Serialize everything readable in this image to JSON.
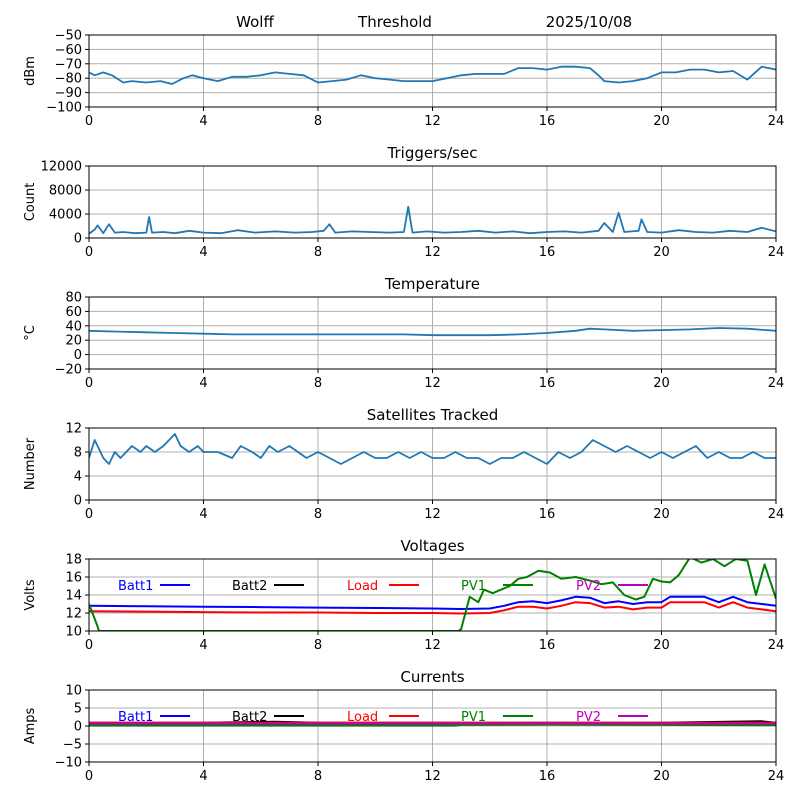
{
  "header": {
    "station": "Wolff",
    "mode": "Threshold",
    "date": "2025/10/08"
  },
  "colors": {
    "series": "#1f77b4",
    "batt1": "#0000ff",
    "batt2": "#000000",
    "load": "#ff0000",
    "pv1": "#008000",
    "pv2": "#bf00bf",
    "grid": "#b0b0b0"
  },
  "chart_data": [
    {
      "type": "line",
      "title": "",
      "ylabel": "dBm",
      "xlim": [
        0,
        24
      ],
      "ylim": [
        -100,
        -50
      ],
      "x_ticks": [
        "0",
        "4",
        "8",
        "12",
        "16",
        "20",
        "24"
      ],
      "y_ticks": [
        "−50",
        "−60",
        "−70",
        "−80",
        "−90",
        "−100"
      ],
      "y_tick_values": [
        -50,
        -60,
        -70,
        -80,
        -90,
        -100
      ],
      "grid": true,
      "series": [
        {
          "x": [
            0,
            0.2,
            0.5,
            0.8,
            1.2,
            1.5,
            2,
            2.5,
            2.9,
            3.3,
            3.6,
            4,
            4.5,
            5,
            5.5,
            6,
            6.5,
            7,
            7.5,
            8,
            8.5,
            9,
            9.5,
            10,
            10.5,
            11,
            11.5,
            12,
            12.5,
            13,
            13.5,
            14,
            14.5,
            15,
            15.5,
            16,
            16.5,
            17,
            17.5,
            17.8,
            18,
            18.5,
            19,
            19.5,
            20,
            20.5,
            21,
            21.5,
            22,
            22.5,
            23,
            23.5,
            24
          ],
          "y": [
            -76,
            -78,
            -76,
            -78,
            -83,
            -82,
            -83,
            -82,
            -84,
            -80,
            -78,
            -80,
            -82,
            -79,
            -79,
            -78,
            -76,
            -77,
            -78,
            -83,
            -82,
            -81,
            -78,
            -80,
            -81,
            -82,
            -82,
            -82,
            -80,
            -78,
            -77,
            -77,
            -77,
            -73,
            -73,
            -74,
            -72,
            -72,
            -73,
            -78,
            -82,
            -83,
            -82,
            -80,
            -76,
            -76,
            -74,
            -74,
            -76,
            -75,
            -81,
            -72,
            -74
          ]
        }
      ]
    },
    {
      "type": "line",
      "title": "Triggers/sec",
      "ylabel": "Count",
      "xlim": [
        0,
        24
      ],
      "ylim": [
        0,
        12000
      ],
      "x_ticks": [
        "0",
        "4",
        "8",
        "12",
        "16",
        "20",
        "24"
      ],
      "y_ticks": [
        "0",
        "4000",
        "8000",
        "12000"
      ],
      "y_tick_values": [
        0,
        4000,
        8000,
        12000
      ],
      "grid": true,
      "series": [
        {
          "x": [
            0,
            0.2,
            0.3,
            0.5,
            0.7,
            0.9,
            1.2,
            1.6,
            2.0,
            2.1,
            2.2,
            2.6,
            3.0,
            3.5,
            4.0,
            4.6,
            5.2,
            5.8,
            6.5,
            7.2,
            7.8,
            8.2,
            8.4,
            8.6,
            9.2,
            9.8,
            10.5,
            11.0,
            11.15,
            11.3,
            11.8,
            12.4,
            13.0,
            13.6,
            14.2,
            14.8,
            15.4,
            16.0,
            16.6,
            17.2,
            17.8,
            18.0,
            18.3,
            18.5,
            18.7,
            19.2,
            19.3,
            19.5,
            20.0,
            20.6,
            21.2,
            21.8,
            22.4,
            23.0,
            23.5,
            24.0
          ],
          "y": [
            700,
            1400,
            2100,
            800,
            2300,
            900,
            1000,
            800,
            900,
            3500,
            900,
            1000,
            800,
            1200,
            900,
            800,
            1300,
            900,
            1100,
            900,
            1000,
            1200,
            2300,
            900,
            1100,
            1000,
            900,
            1000,
            5200,
            900,
            1100,
            900,
            1000,
            1200,
            900,
            1100,
            800,
            1000,
            1100,
            900,
            1200,
            2500,
            1000,
            4200,
            1000,
            1200,
            3100,
            1000,
            900,
            1300,
            1000,
            900,
            1200,
            1000,
            1700,
            1100
          ]
        }
      ]
    },
    {
      "type": "line",
      "title": "Temperature",
      "ylabel": "°C",
      "xlim": [
        0,
        24
      ],
      "ylim": [
        -20,
        80
      ],
      "x_ticks": [
        "0",
        "4",
        "8",
        "12",
        "16",
        "20",
        "24"
      ],
      "y_ticks": [
        "−20",
        "0",
        "20",
        "40",
        "60",
        "80"
      ],
      "y_tick_values": [
        -20,
        0,
        20,
        40,
        60,
        80
      ],
      "grid": true,
      "series": [
        {
          "x": [
            0,
            1,
            2,
            3,
            4,
            5,
            6,
            7,
            8,
            9,
            10,
            11,
            12,
            13,
            14,
            15,
            16,
            17,
            17.5,
            18,
            19,
            20,
            21,
            22,
            23,
            24
          ],
          "y": [
            33,
            32,
            31,
            30,
            29,
            28,
            28,
            28,
            28,
            28,
            28,
            28,
            27,
            27,
            27,
            28,
            30,
            33,
            36,
            35,
            33,
            34,
            35,
            37,
            36,
            33
          ]
        }
      ]
    },
    {
      "type": "line",
      "title": "Satellites Tracked",
      "ylabel": "Number",
      "xlim": [
        0,
        24
      ],
      "ylim": [
        0,
        12
      ],
      "x_ticks": [
        "0",
        "4",
        "8",
        "12",
        "16",
        "20",
        "24"
      ],
      "y_ticks": [
        "0",
        "4",
        "8",
        "12"
      ],
      "y_tick_values": [
        0,
        4,
        8,
        12
      ],
      "grid": true,
      "series": [
        {
          "x": [
            0,
            0.2,
            0.3,
            0.5,
            0.7,
            0.9,
            1.1,
            1.3,
            1.5,
            1.8,
            2.0,
            2.3,
            2.6,
            3.0,
            3.2,
            3.5,
            3.8,
            4.0,
            4.5,
            5.0,
            5.3,
            5.7,
            6.0,
            6.3,
            6.6,
            7.0,
            7.3,
            7.6,
            8.0,
            8.4,
            8.8,
            9.2,
            9.6,
            10.0,
            10.4,
            10.8,
            11.2,
            11.6,
            12.0,
            12.4,
            12.8,
            13.2,
            13.6,
            14.0,
            14.4,
            14.8,
            15.2,
            15.6,
            16.0,
            16.4,
            16.8,
            17.2,
            17.6,
            18.0,
            18.4,
            18.8,
            19.2,
            19.6,
            20.0,
            20.4,
            20.8,
            21.2,
            21.6,
            22.0,
            22.4,
            22.8,
            23.2,
            23.6,
            24.0
          ],
          "y": [
            7,
            10,
            9,
            7,
            6,
            8,
            7,
            8,
            9,
            8,
            9,
            8,
            9,
            11,
            9,
            8,
            9,
            8,
            8,
            7,
            9,
            8,
            7,
            9,
            8,
            9,
            8,
            7,
            8,
            7,
            6,
            7,
            8,
            7,
            7,
            8,
            7,
            8,
            7,
            7,
            8,
            7,
            7,
            6,
            7,
            7,
            8,
            7,
            6,
            8,
            7,
            8,
            10,
            9,
            8,
            9,
            8,
            7,
            8,
            7,
            8,
            9,
            7,
            8,
            7,
            7,
            8,
            7,
            7
          ]
        }
      ]
    },
    {
      "type": "line",
      "title": "Voltages",
      "ylabel": "Volts",
      "xlim": [
        0,
        24
      ],
      "ylim": [
        10,
        18
      ],
      "x_ticks": [
        "0",
        "4",
        "8",
        "12",
        "16",
        "20",
        "24"
      ],
      "y_ticks": [
        "10",
        "12",
        "14",
        "16",
        "18"
      ],
      "y_tick_values": [
        10,
        12,
        14,
        16,
        18
      ],
      "grid": true,
      "legend": "top",
      "series": [
        {
          "name": "Batt1",
          "color": "#0000ff",
          "x": [
            0,
            2,
            4,
            6,
            8,
            10,
            12,
            13,
            14,
            14.5,
            15,
            15.5,
            16,
            16.5,
            17,
            17.5,
            18,
            18.5,
            19,
            19.5,
            20,
            20.3,
            21,
            21.5,
            22,
            22.5,
            23,
            23.5,
            24
          ],
          "y": [
            12.8,
            12.75,
            12.7,
            12.65,
            12.6,
            12.55,
            12.5,
            12.45,
            12.5,
            12.8,
            13.2,
            13.3,
            13.1,
            13.4,
            13.8,
            13.7,
            13.1,
            13.3,
            13.0,
            13.2,
            13.2,
            13.8,
            13.8,
            13.8,
            13.2,
            13.8,
            13.2,
            13.0,
            12.8
          ]
        },
        {
          "name": "Batt2",
          "color": "#000000",
          "x": [],
          "y": []
        },
        {
          "name": "Load",
          "color": "#ff0000",
          "x": [
            0,
            2,
            4,
            6,
            8,
            10,
            12,
            13,
            14,
            14.5,
            15,
            15.5,
            16,
            16.5,
            17,
            17.5,
            18,
            18.5,
            19,
            19.5,
            20,
            20.3,
            21,
            21.5,
            22,
            22.5,
            23,
            23.5,
            24
          ],
          "y": [
            12.2,
            12.15,
            12.1,
            12.05,
            12.05,
            12.0,
            12.0,
            11.95,
            12.0,
            12.3,
            12.7,
            12.7,
            12.5,
            12.8,
            13.2,
            13.1,
            12.6,
            12.7,
            12.4,
            12.6,
            12.6,
            13.2,
            13.2,
            13.2,
            12.6,
            13.2,
            12.6,
            12.4,
            12.2
          ]
        },
        {
          "name": "PV1",
          "color": "#008000",
          "x": [
            0,
            0.3,
            0.35,
            12.9,
            13.0,
            13.3,
            13.6,
            13.8,
            14.1,
            14.4,
            14.7,
            15.0,
            15.3,
            15.7,
            16.1,
            16.5,
            17.0,
            17.5,
            17.9,
            18.3,
            18.7,
            19.1,
            19.4,
            19.7,
            20.0,
            20.3,
            20.6,
            21.0,
            21.4,
            21.8,
            22.2,
            22.6,
            23.0,
            23.3,
            23.6,
            24.0
          ],
          "y": [
            13.0,
            10.5,
            10.0,
            10.0,
            10.2,
            13.8,
            13.2,
            14.6,
            14.2,
            14.6,
            15.0,
            15.8,
            16.0,
            16.7,
            16.5,
            15.8,
            16.0,
            15.6,
            15.2,
            15.4,
            14.0,
            13.5,
            13.8,
            15.8,
            15.5,
            15.4,
            16.2,
            18.2,
            17.6,
            18.0,
            17.2,
            18.0,
            17.8,
            14.0,
            17.4,
            13.6
          ]
        },
        {
          "name": "PV2",
          "color": "#bf00bf",
          "x": [],
          "y": []
        }
      ]
    },
    {
      "type": "line",
      "title": "Currents",
      "ylabel": "Amps",
      "xlim": [
        0,
        24
      ],
      "ylim": [
        -10,
        10
      ],
      "x_ticks": [
        "0",
        "4",
        "8",
        "12",
        "16",
        "20",
        "24"
      ],
      "y_ticks": [
        "−10",
        "−5",
        "0",
        "5",
        "10"
      ],
      "y_tick_values": [
        -10,
        -5,
        0,
        5,
        10
      ],
      "grid": true,
      "legend": "top",
      "series": [
        {
          "name": "Batt1",
          "color": "#0000ff",
          "x": [
            0,
            4,
            8,
            12,
            16,
            20,
            24
          ],
          "y": [
            0.5,
            0.5,
            0.5,
            0.5,
            0.5,
            0.5,
            0.5
          ]
        },
        {
          "name": "Batt2",
          "color": "#000000",
          "x": [
            0,
            4,
            6.5,
            8,
            12,
            16,
            20,
            23.5,
            24
          ],
          "y": [
            0.9,
            0.9,
            1.2,
            0.9,
            0.9,
            0.9,
            0.9,
            1.3,
            0.9
          ]
        },
        {
          "name": "Load",
          "color": "#ff0000",
          "x": [
            0,
            4,
            8,
            12,
            16,
            20,
            24
          ],
          "y": [
            0.9,
            0.9,
            0.9,
            0.9,
            0.9,
            0.9,
            0.9
          ]
        },
        {
          "name": "PV1",
          "color": "#008000",
          "x": [
            0,
            12.8,
            13,
            16,
            20,
            24
          ],
          "y": [
            0.1,
            0.1,
            0.3,
            0.4,
            0.3,
            0.2
          ]
        },
        {
          "name": "PV2",
          "color": "#bf00bf",
          "x": [
            0,
            4,
            8,
            12,
            16,
            20,
            24
          ],
          "y": [
            0.7,
            0.7,
            0.7,
            0.7,
            0.7,
            0.7,
            0.7
          ]
        }
      ]
    }
  ]
}
